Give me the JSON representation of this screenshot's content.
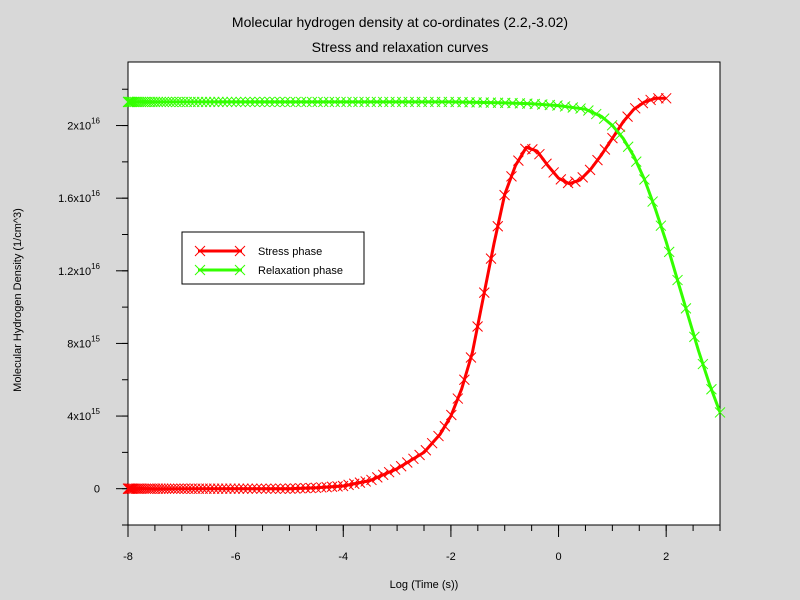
{
  "chart_data": {
    "type": "line",
    "title": "Molecular hydrogen density  at co-ordinates (2.2,-3.02)",
    "subtitle": "Stress and relaxation curves",
    "xlabel": "Log (Time (s))",
    "ylabel": "Molecular Hydrogen Density (1/cm^3)",
    "xlim": [
      -8,
      3
    ],
    "ylim": [
      -2000000000000000.0,
      2.35e+16
    ],
    "x_ticks": [
      {
        "value": -8,
        "label": "-8"
      },
      {
        "value": -6,
        "label": "-6"
      },
      {
        "value": -4,
        "label": "-4"
      },
      {
        "value": -2,
        "label": "-2"
      },
      {
        "value": 0,
        "label": "0"
      },
      {
        "value": 2,
        "label": "2"
      }
    ],
    "y_ticks": [
      {
        "value": 0,
        "base": "0",
        "exp": ""
      },
      {
        "value": 4000000000000000.0,
        "base": "4x10",
        "exp": "15"
      },
      {
        "value": 8000000000000000.0,
        "base": "8x10",
        "exp": "15"
      },
      {
        "value": 1.2e+16,
        "base": "1.2x10",
        "exp": "16"
      },
      {
        "value": 1.6e+16,
        "base": "1.6x10",
        "exp": "16"
      },
      {
        "value": 2e+16,
        "base": "2x10",
        "exp": "16"
      }
    ],
    "grid": false,
    "legend_position": "upper-left",
    "series": [
      {
        "name": "Stress phase",
        "color": "#ff0000",
        "marker": "x",
        "points": [
          [
            -8,
            0
          ],
          [
            -7,
            0
          ],
          [
            -6,
            0
          ],
          [
            -5,
            0
          ],
          [
            -4.5,
            50000000000000.0
          ],
          [
            -4,
            150000000000000.0
          ],
          [
            -3.5,
            450000000000000.0
          ],
          [
            -3,
            1100000000000000.0
          ],
          [
            -2.5,
            2000000000000000.0
          ],
          [
            -2.2,
            3000000000000000.0
          ],
          [
            -2.0,
            4000000000000000.0
          ],
          [
            -1.8,
            5500000000000000.0
          ],
          [
            -1.6,
            7500000000000000.0
          ],
          [
            -1.4,
            1.05e+16
          ],
          [
            -1.2,
            1.35e+16
          ],
          [
            -1.0,
            1.62e+16
          ],
          [
            -0.8,
            1.78e+16
          ],
          [
            -0.6,
            1.88e+16
          ],
          [
            -0.4,
            1.86e+16
          ],
          [
            -0.2,
            1.78e+16
          ],
          [
            0.0,
            1.71e+16
          ],
          [
            0.2,
            1.68e+16
          ],
          [
            0.4,
            1.7e+16
          ],
          [
            0.6,
            1.76e+16
          ],
          [
            0.8,
            1.84e+16
          ],
          [
            1.0,
            1.93e+16
          ],
          [
            1.2,
            2.02e+16
          ],
          [
            1.4,
            2.09e+16
          ],
          [
            1.6,
            2.13e+16
          ],
          [
            1.8,
            2.15e+16
          ],
          [
            2.0,
            2.15e+16
          ]
        ]
      },
      {
        "name": "Relaxation phase",
        "color": "#33ff00",
        "marker": "x",
        "points": [
          [
            -8,
            2.13e+16
          ],
          [
            -6,
            2.13e+16
          ],
          [
            -4,
            2.13e+16
          ],
          [
            -3,
            2.13e+16
          ],
          [
            -2,
            2.13e+16
          ],
          [
            -1,
            2.125e+16
          ],
          [
            -0.5,
            2.12e+16
          ],
          [
            0.0,
            2.11e+16
          ],
          [
            0.5,
            2.09e+16
          ],
          [
            0.8,
            2.05e+16
          ],
          [
            1.0,
            2e+16
          ],
          [
            1.2,
            1.93e+16
          ],
          [
            1.4,
            1.83e+16
          ],
          [
            1.6,
            1.7e+16
          ],
          [
            1.8,
            1.54e+16
          ],
          [
            2.0,
            1.36e+16
          ],
          [
            2.2,
            1.16e+16
          ],
          [
            2.4,
            9600000000000000.0
          ],
          [
            2.6,
            7600000000000000.0
          ],
          [
            2.8,
            5800000000000000.0
          ],
          [
            3.0,
            4200000000000000.0
          ]
        ]
      }
    ]
  }
}
